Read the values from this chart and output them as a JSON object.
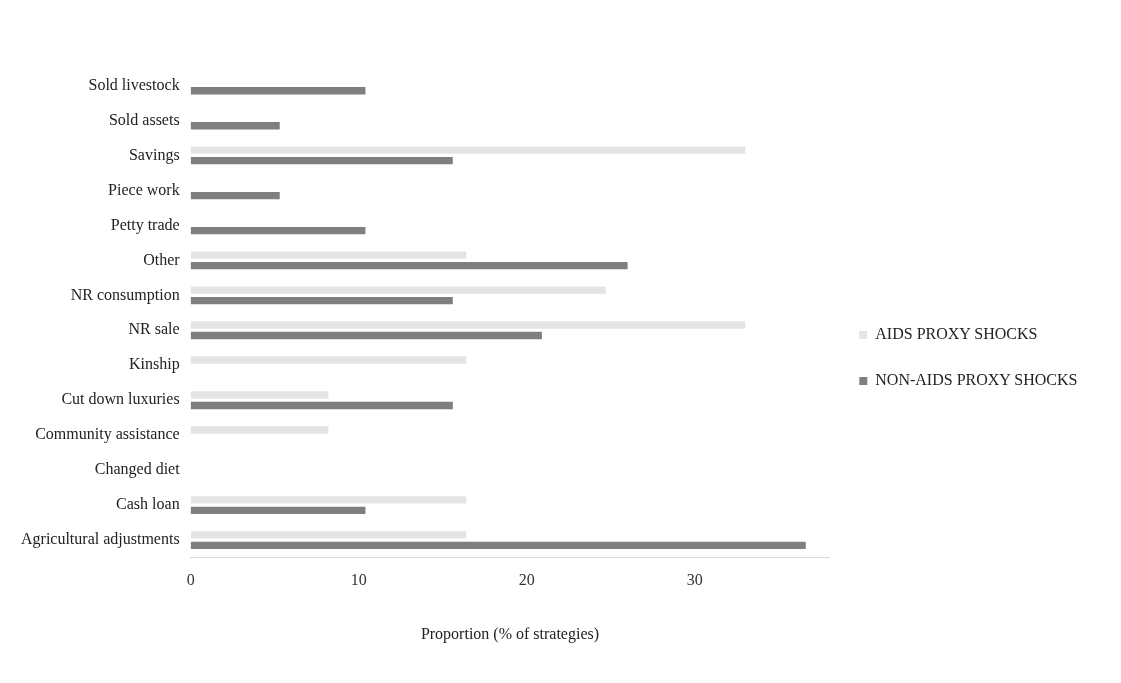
{
  "chart_data": {
    "type": "bar",
    "orientation": "horizontal",
    "xlabel": "Proportion (% of strategies)",
    "categories": [
      "Sold livestock",
      "Sold assets",
      "Savings",
      "Piece work",
      "Petty trade",
      "Other",
      "NR consumption",
      "NR sale",
      "Kinship",
      "Cut down luxuries",
      "Community assistance",
      "Changed diet",
      "Cash loan",
      "Agricultural adjustments"
    ],
    "series": [
      {
        "name": "AIDS PROXY SHOCKS",
        "color": "#e4e4e4",
        "values": [
          0,
          0,
          33,
          0,
          0,
          16.4,
          24.7,
          33,
          16.4,
          8.2,
          8.2,
          0,
          16.4,
          16.4
        ]
      },
      {
        "name": "NON-AIDS PROXY SHOCKS",
        "color": "#7f7f7f",
        "values": [
          10.4,
          5.3,
          15.6,
          5.3,
          10.4,
          26,
          15.6,
          20.9,
          0,
          15.6,
          0,
          0,
          10.4,
          36.6
        ]
      }
    ],
    "xlim": [
      0,
      38
    ],
    "xticks": [
      0,
      10,
      20,
      30
    ],
    "grid": false,
    "legend": "right"
  }
}
